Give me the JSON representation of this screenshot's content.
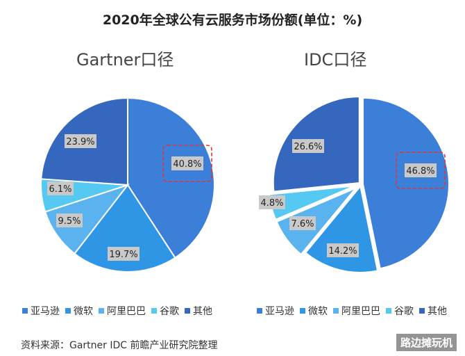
{
  "title": "2020年全球公有云服务市场份额(单位：%)",
  "source": "资料来源：Gartner IDC 前瞻产业研究院整理",
  "watermark": "路边摊玩机",
  "colors": {
    "amazon": "#3b7fd9",
    "microsoft": "#2f96e6",
    "alibaba": "#5ab3ef",
    "google": "#55c9f2",
    "other": "#3567bf",
    "highlight": "#d9363e",
    "label_bg": "#c9c9c9"
  },
  "chart_data": [
    {
      "type": "pie",
      "title": "Gartner口径",
      "legend_placement": "bottom",
      "highlight": "亚马逊",
      "slices": [
        {
          "name": "亚马逊",
          "value": 40.8,
          "label": "40.8%"
        },
        {
          "name": "微软",
          "value": 19.7,
          "label": "19.7%"
        },
        {
          "name": "阿里巴巴",
          "value": 9.5,
          "label": "9.5%"
        },
        {
          "name": "谷歌",
          "value": 6.1,
          "label": "6.1%"
        },
        {
          "name": "其他",
          "value": 23.9,
          "label": "23.9%"
        }
      ]
    },
    {
      "type": "pie",
      "title": "IDC口径",
      "legend_placement": "bottom",
      "highlight": "亚马逊",
      "slices": [
        {
          "name": "亚马逊",
          "value": 46.8,
          "label": "46.8%"
        },
        {
          "name": "微软",
          "value": 14.2,
          "label": "14.2%"
        },
        {
          "name": "阿里巴巴",
          "value": 7.6,
          "label": "7.6%"
        },
        {
          "name": "谷歌",
          "value": 4.8,
          "label": "4.8%"
        },
        {
          "name": "其他",
          "value": 26.6,
          "label": "26.6%"
        }
      ]
    }
  ]
}
